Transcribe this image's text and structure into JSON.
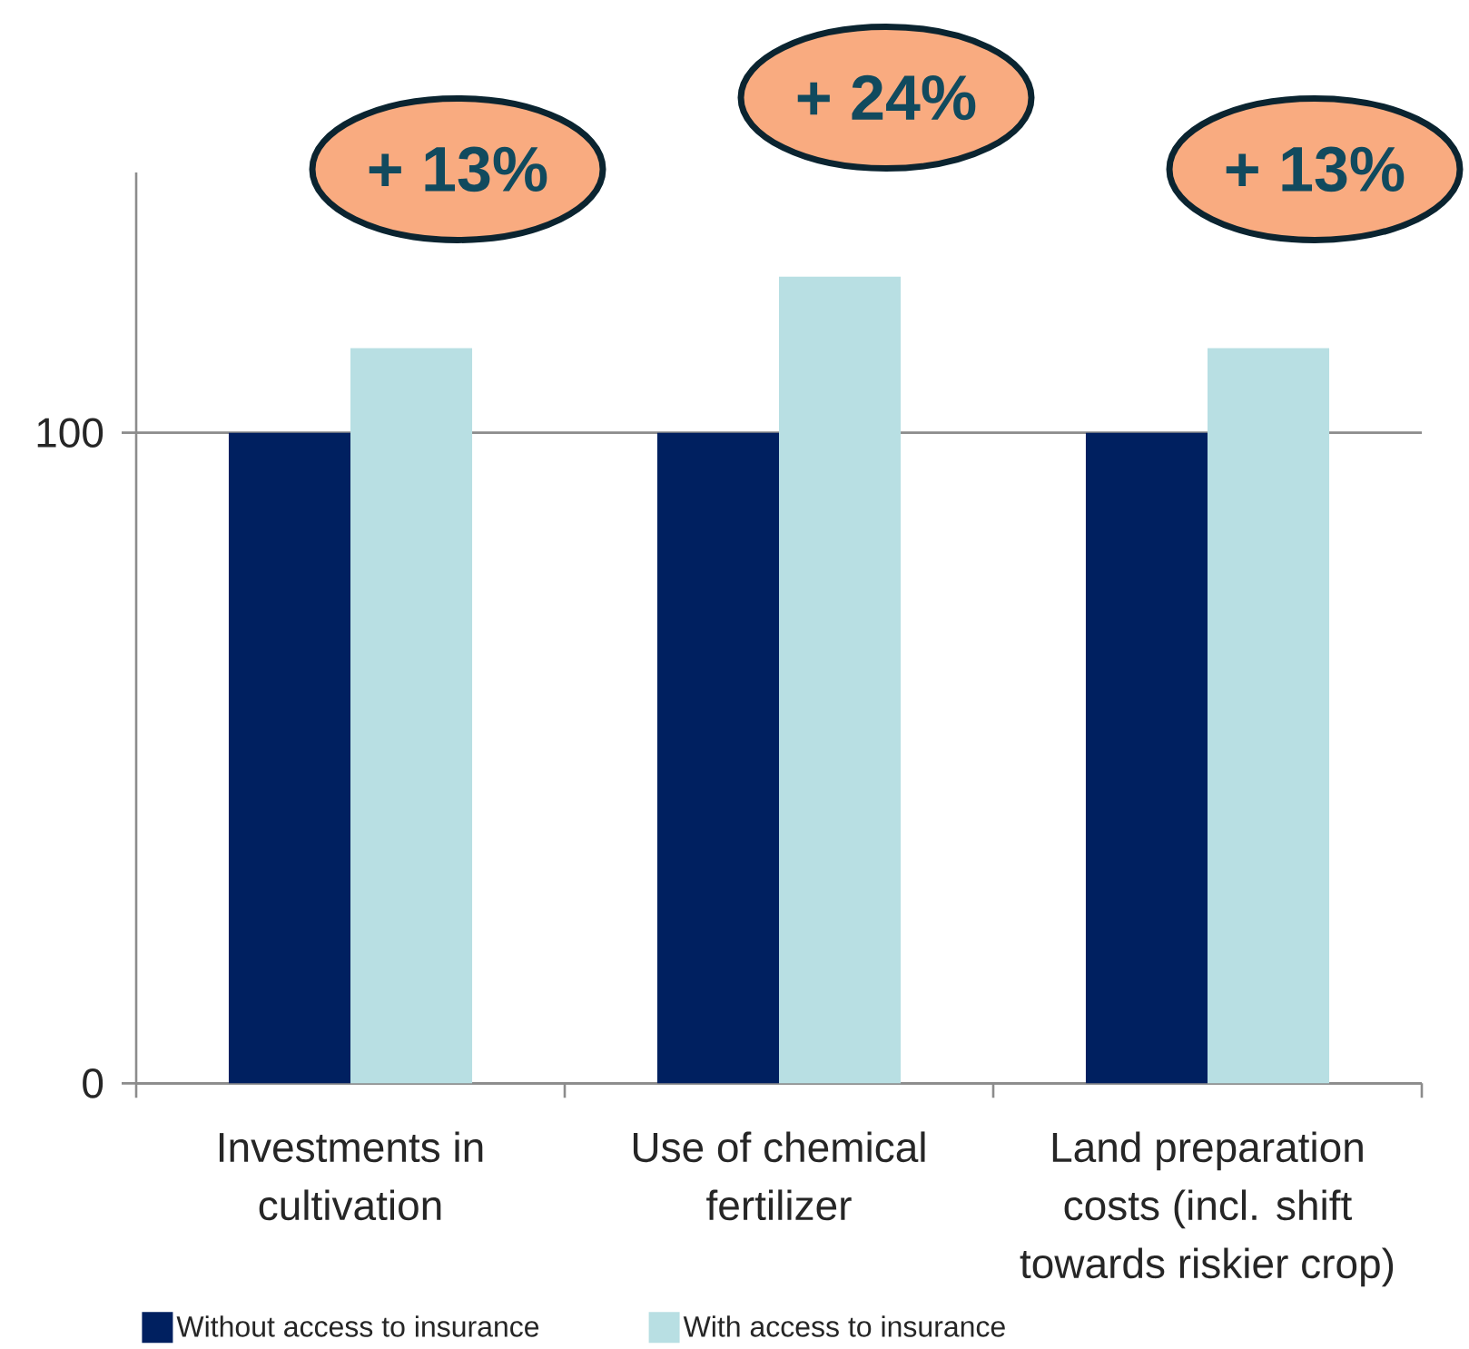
{
  "chart_data": {
    "type": "bar",
    "categories": [
      "Investments in cultivation",
      "Use of chemical fertilizer",
      "Land preparation costs (incl. shift towards riskier crop)"
    ],
    "series": [
      {
        "name": "Without access to insurance",
        "color": "#002060",
        "values": [
          100,
          100,
          100
        ]
      },
      {
        "name": "With access to insurance",
        "color": "#b8dfe3",
        "values": [
          113,
          124,
          113
        ]
      }
    ],
    "ylim": [
      0,
      140
    ],
    "yticks": [
      0,
      100
    ],
    "grid": "y",
    "legend": "bottom",
    "annotations": [
      "+ 13%",
      "+ 24%",
      "+ 13%"
    ]
  }
}
